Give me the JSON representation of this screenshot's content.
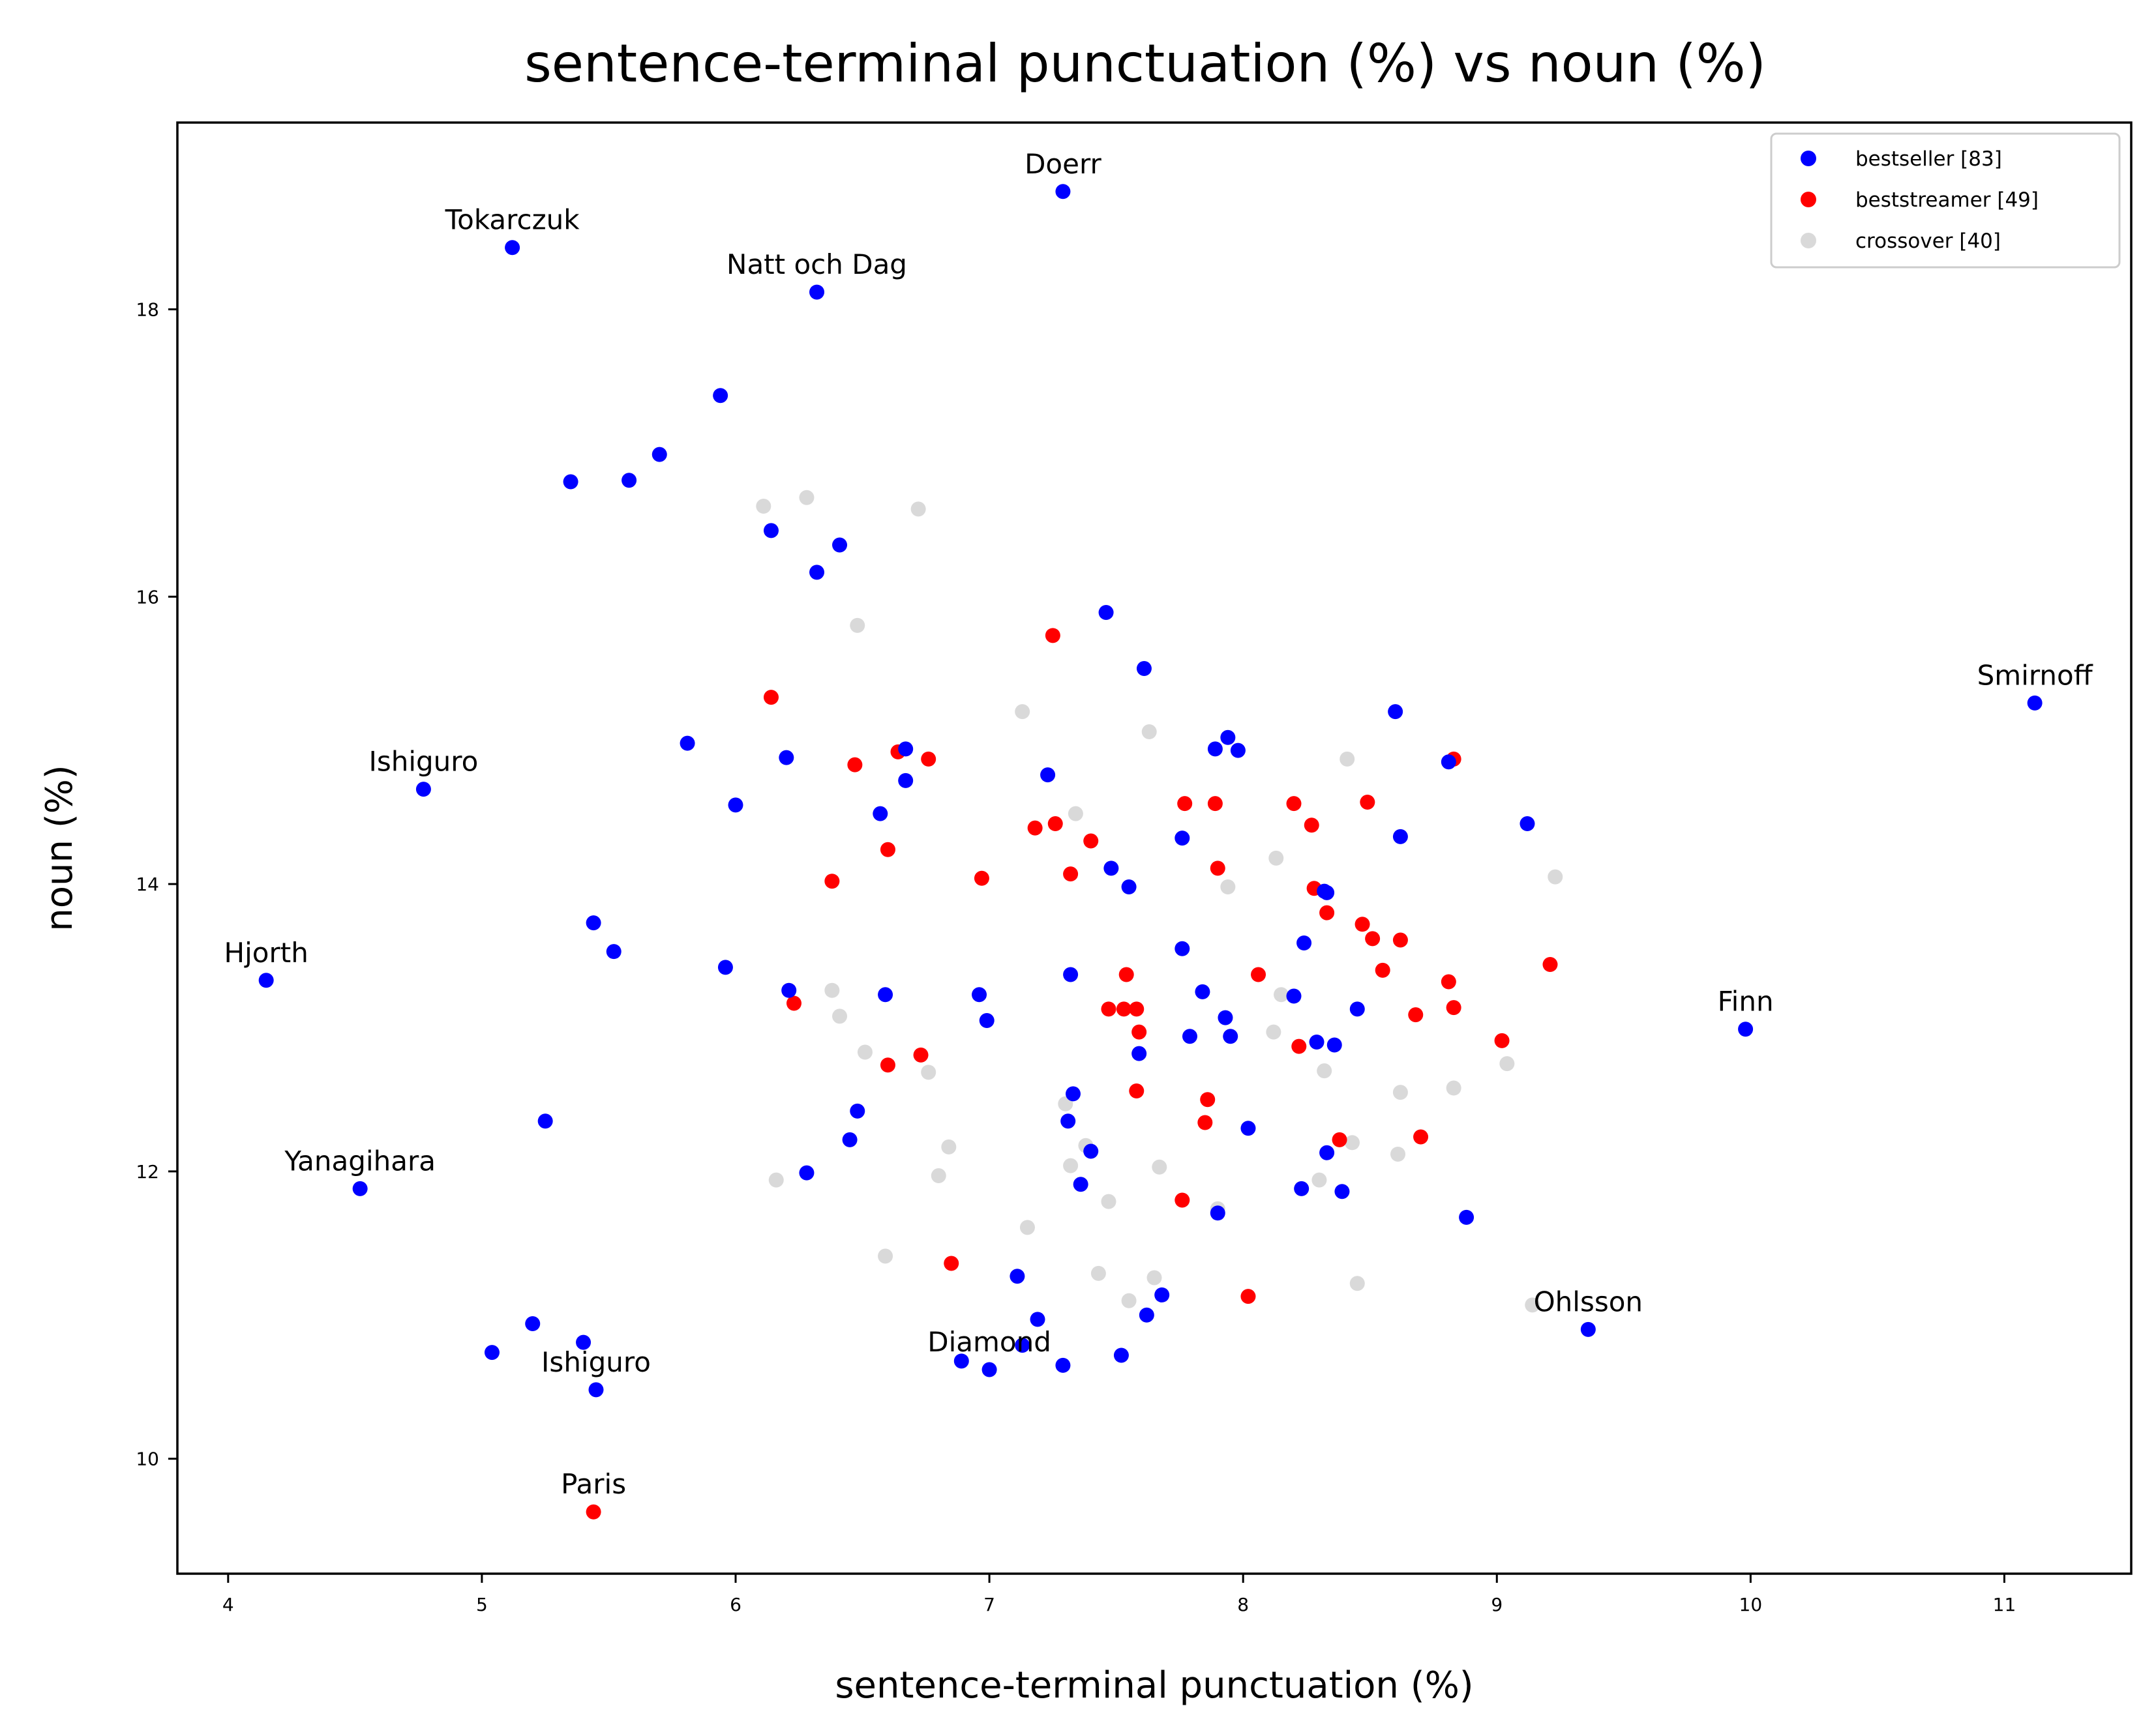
{
  "chart_data": {
    "type": "scatter",
    "title": "sentence-terminal punctuation (%) vs noun (%)",
    "xlabel": "sentence-terminal punctuation (%)",
    "ylabel": "noun (%)",
    "xlim": [
      3.8,
      11.5
    ],
    "ylim": [
      9.2,
      19.3
    ],
    "xticks": [
      "4",
      "5",
      "6",
      "7",
      "8",
      "9",
      "10",
      "11"
    ],
    "yticks": [
      "10",
      "12",
      "14",
      "16",
      "18"
    ],
    "grid": false,
    "legend_position": "top-right",
    "series": [
      {
        "name": "bestseller [83]",
        "color": "#0000ff",
        "points": [
          [
            7.29,
            18.82
          ],
          [
            5.12,
            18.43
          ],
          [
            6.32,
            18.12
          ],
          [
            5.94,
            17.4
          ],
          [
            5.35,
            16.8
          ],
          [
            5.58,
            16.81
          ],
          [
            5.7,
            16.99
          ],
          [
            6.14,
            16.46
          ],
          [
            6.41,
            16.36
          ],
          [
            6.32,
            16.17
          ],
          [
            7.46,
            15.89
          ],
          [
            7.61,
            15.5
          ],
          [
            11.12,
            15.26
          ],
          [
            8.6,
            15.2
          ],
          [
            5.81,
            14.98
          ],
          [
            6.67,
            14.94
          ],
          [
            6.2,
            14.88
          ],
          [
            7.89,
            14.94
          ],
          [
            7.94,
            15.02
          ],
          [
            7.98,
            14.93
          ],
          [
            8.81,
            14.85
          ],
          [
            7.23,
            14.76
          ],
          [
            6.67,
            14.72
          ],
          [
            4.77,
            14.66
          ],
          [
            6.0,
            14.55
          ],
          [
            6.57,
            14.49
          ],
          [
            9.12,
            14.42
          ],
          [
            7.76,
            14.32
          ],
          [
            8.62,
            14.33
          ],
          [
            7.48,
            14.11
          ],
          [
            7.55,
            13.98
          ],
          [
            8.32,
            13.95
          ],
          [
            5.44,
            13.73
          ],
          [
            7.76,
            13.55
          ],
          [
            8.24,
            13.59
          ],
          [
            5.52,
            13.53
          ],
          [
            5.96,
            13.42
          ],
          [
            7.32,
            13.37
          ],
          [
            4.15,
            13.33
          ],
          [
            6.21,
            13.26
          ],
          [
            6.59,
            13.23
          ],
          [
            6.96,
            13.23
          ],
          [
            7.84,
            13.25
          ],
          [
            8.2,
            13.22
          ],
          [
            8.45,
            13.13
          ],
          [
            7.93,
            13.07
          ],
          [
            6.99,
            13.05
          ],
          [
            9.98,
            12.99
          ],
          [
            7.79,
            12.94
          ],
          [
            7.95,
            12.94
          ],
          [
            8.29,
            12.9
          ],
          [
            8.36,
            12.88
          ],
          [
            7.59,
            12.82
          ],
          [
            7.33,
            12.54
          ],
          [
            6.48,
            12.42
          ],
          [
            5.25,
            12.35
          ],
          [
            7.31,
            12.35
          ],
          [
            8.02,
            12.3
          ],
          [
            6.45,
            12.22
          ],
          [
            7.4,
            12.14
          ],
          [
            8.33,
            12.13
          ],
          [
            6.28,
            11.99
          ],
          [
            7.36,
            11.91
          ],
          [
            4.52,
            11.88
          ],
          [
            8.23,
            11.88
          ],
          [
            8.39,
            11.86
          ],
          [
            7.9,
            11.71
          ],
          [
            8.88,
            11.68
          ],
          [
            7.11,
            11.27
          ],
          [
            7.68,
            11.14
          ],
          [
            7.62,
            11.0
          ],
          [
            5.2,
            10.94
          ],
          [
            7.19,
            10.97
          ],
          [
            9.36,
            10.9
          ],
          [
            5.4,
            10.81
          ],
          [
            7.13,
            10.79
          ],
          [
            5.04,
            10.74
          ],
          [
            7.52,
            10.72
          ],
          [
            6.89,
            10.68
          ],
          [
            7.29,
            10.65
          ],
          [
            7.0,
            10.62
          ],
          [
            5.45,
            10.48
          ],
          [
            8.33,
            13.94
          ]
        ]
      },
      {
        "name": "beststreamer [49]",
        "color": "#ff0000",
        "points": [
          [
            7.25,
            15.73
          ],
          [
            6.14,
            15.3
          ],
          [
            6.64,
            14.92
          ],
          [
            6.76,
            14.87
          ],
          [
            6.47,
            14.83
          ],
          [
            8.83,
            14.87
          ],
          [
            7.77,
            14.56
          ],
          [
            7.89,
            14.56
          ],
          [
            8.2,
            14.56
          ],
          [
            8.49,
            14.57
          ],
          [
            7.18,
            14.39
          ],
          [
            7.26,
            14.42
          ],
          [
            8.27,
            14.41
          ],
          [
            7.4,
            14.3
          ],
          [
            6.6,
            14.24
          ],
          [
            7.9,
            14.11
          ],
          [
            7.32,
            14.07
          ],
          [
            6.97,
            14.04
          ],
          [
            6.38,
            14.02
          ],
          [
            8.28,
            13.97
          ],
          [
            8.33,
            13.8
          ],
          [
            8.47,
            13.72
          ],
          [
            8.51,
            13.62
          ],
          [
            8.62,
            13.61
          ],
          [
            9.21,
            13.44
          ],
          [
            8.06,
            13.37
          ],
          [
            8.55,
            13.4
          ],
          [
            7.54,
            13.37
          ],
          [
            8.81,
            13.32
          ],
          [
            6.23,
            13.17
          ],
          [
            7.47,
            13.13
          ],
          [
            7.53,
            13.13
          ],
          [
            7.58,
            13.13
          ],
          [
            8.83,
            13.14
          ],
          [
            8.68,
            13.09
          ],
          [
            7.59,
            12.97
          ],
          [
            9.02,
            12.91
          ],
          [
            8.22,
            12.87
          ],
          [
            6.73,
            12.81
          ],
          [
            6.6,
            12.74
          ],
          [
            7.58,
            12.56
          ],
          [
            7.86,
            12.5
          ],
          [
            7.85,
            12.34
          ],
          [
            8.7,
            12.24
          ],
          [
            8.38,
            12.22
          ],
          [
            7.76,
            11.8
          ],
          [
            6.85,
            11.36
          ],
          [
            8.02,
            11.13
          ],
          [
            5.44,
            9.63
          ]
        ]
      },
      {
        "name": "crossover [40]",
        "color": "#d9d9d9",
        "points": [
          [
            6.11,
            16.63
          ],
          [
            6.28,
            16.69
          ],
          [
            6.72,
            16.61
          ],
          [
            6.48,
            15.8
          ],
          [
            7.13,
            15.2
          ],
          [
            7.63,
            15.06
          ],
          [
            8.41,
            14.87
          ],
          [
            7.34,
            14.49
          ],
          [
            8.13,
            14.18
          ],
          [
            9.23,
            14.05
          ],
          [
            7.94,
            13.98
          ],
          [
            6.38,
            13.26
          ],
          [
            8.15,
            13.23
          ],
          [
            6.41,
            13.08
          ],
          [
            8.12,
            12.97
          ],
          [
            6.51,
            12.83
          ],
          [
            9.04,
            12.75
          ],
          [
            6.76,
            12.69
          ],
          [
            8.32,
            12.7
          ],
          [
            8.62,
            12.55
          ],
          [
            8.83,
            12.58
          ],
          [
            7.3,
            12.47
          ],
          [
            6.84,
            12.17
          ],
          [
            7.38,
            12.18
          ],
          [
            8.43,
            12.2
          ],
          [
            8.61,
            12.12
          ],
          [
            7.32,
            12.04
          ],
          [
            7.67,
            12.03
          ],
          [
            6.8,
            11.97
          ],
          [
            6.16,
            11.94
          ],
          [
            8.3,
            11.94
          ],
          [
            7.47,
            11.79
          ],
          [
            7.9,
            11.74
          ],
          [
            7.15,
            11.61
          ],
          [
            6.59,
            11.41
          ],
          [
            7.43,
            11.29
          ],
          [
            7.65,
            11.26
          ],
          [
            8.45,
            11.22
          ],
          [
            7.55,
            11.1
          ],
          [
            9.14,
            11.07
          ]
        ]
      }
    ],
    "annotations": [
      {
        "text": "Doerr",
        "x": 7.29,
        "y": 18.82
      },
      {
        "text": "Tokarczuk",
        "x": 5.12,
        "y": 18.43
      },
      {
        "text": "Natt och Dag",
        "x": 6.32,
        "y": 18.12
      },
      {
        "text": "Smirnoff",
        "x": 11.12,
        "y": 15.26
      },
      {
        "text": "Ishiguro",
        "x": 4.77,
        "y": 14.66
      },
      {
        "text": "Hjorth",
        "x": 4.15,
        "y": 13.33
      },
      {
        "text": "Finn",
        "x": 9.98,
        "y": 12.99
      },
      {
        "text": "Yanagihara",
        "x": 4.52,
        "y": 11.88
      },
      {
        "text": "Ohlsson",
        "x": 9.36,
        "y": 10.9
      },
      {
        "text": "Diamond",
        "x": 7.0,
        "y": 10.62
      },
      {
        "text": "Ishiguro",
        "x": 5.45,
        "y": 10.48
      },
      {
        "text": "Paris",
        "x": 5.44,
        "y": 9.63
      }
    ]
  }
}
